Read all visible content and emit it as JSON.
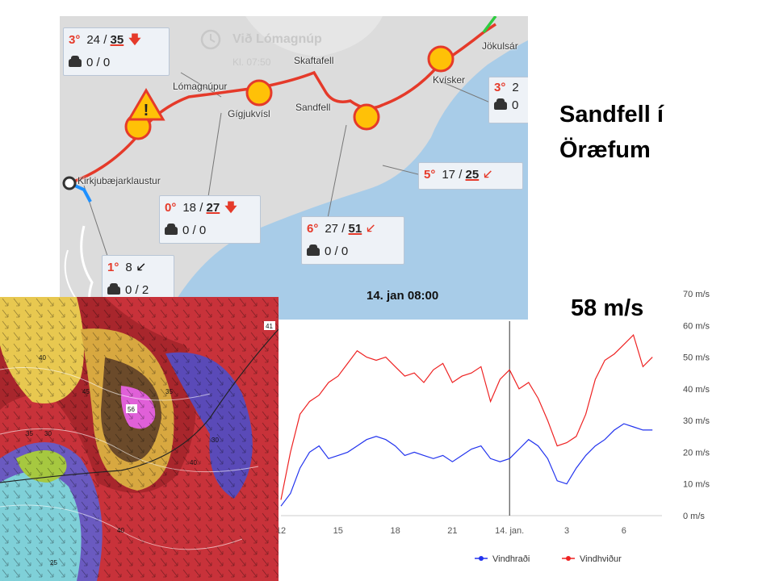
{
  "annotation": {
    "station_title": "Sandfell í Öræfum",
    "peak_label": "58 m/s"
  },
  "map": {
    "timestamp": "14. jan 08:00",
    "clock_label": "Við Lómagnúp",
    "clock_time": "Kl. 07:50",
    "places": [
      "Kirkjubæjarklaustur",
      "Lómagnúpur",
      "Gígjukvísl",
      "Skaftafell",
      "Sandfell",
      "Kvísker",
      "Jökulsár"
    ],
    "stations": [
      {
        "temp": "3°",
        "wind": "24",
        "gust": "35",
        "dir_icon": "arrow-down",
        "traffic": "0 / 0"
      },
      {
        "temp": "0°",
        "wind": "18",
        "gust": "27",
        "dir_icon": "arrow-down",
        "traffic": "0 / 0"
      },
      {
        "temp": "6°",
        "wind": "27",
        "gust": "51",
        "dir_icon": "arrow-down-left",
        "traffic": "0 / 0"
      },
      {
        "temp": "5°",
        "wind": "17",
        "gust": "25",
        "dir_icon": "arrow-down-left",
        "traffic": ""
      },
      {
        "temp": "3°",
        "wind": "2",
        "gust": "",
        "dir_icon": "",
        "traffic": "0"
      },
      {
        "temp": "1°",
        "wind": "8",
        "gust": "",
        "dir_icon": "arrow-down-left-black",
        "traffic": "0 / 2"
      }
    ],
    "colors": {
      "road_warning": "#e53a2a",
      "road_ok": "#2ecc40",
      "sea": "#a8cce8",
      "land": "#dcdcdc",
      "marker": "#ffc107"
    }
  },
  "model": {
    "contour_labels": [
      "41",
      "40",
      "45",
      "56",
      "35",
      "30",
      "35",
      "30",
      "40",
      "40",
      "25"
    ]
  },
  "chart_data": {
    "type": "line",
    "title": "",
    "xlabel": "",
    "ylabel": "",
    "ylim": [
      0,
      70
    ],
    "y_ticks": [
      "0 m/s",
      "10 m/s",
      "20 m/s",
      "30 m/s",
      "40 m/s",
      "50 m/s",
      "60 m/s",
      "70 m/s"
    ],
    "x_tick_labels": [
      "12",
      "15",
      "18",
      "21",
      "14. jan.",
      "3",
      "6"
    ],
    "x_tick_hours": [
      0,
      3,
      6,
      9,
      12,
      15,
      18
    ],
    "x_range_hours": [
      0,
      20
    ],
    "marker_hour": 12,
    "grid": false,
    "legend_position": "bottom-right",
    "series": [
      {
        "name": "Vindhraði",
        "color": "#2233ee",
        "x": [
          0,
          0.5,
          1,
          1.5,
          2,
          2.5,
          3,
          3.5,
          4,
          4.5,
          5,
          5.5,
          6,
          6.5,
          7,
          7.5,
          8,
          8.5,
          9,
          9.5,
          10,
          10.5,
          11,
          11.5,
          12,
          12.5,
          13,
          13.5,
          14,
          14.5,
          15,
          15.5,
          16,
          16.5,
          17,
          17.5,
          18,
          18.5,
          19,
          19.5
        ],
        "values": [
          3,
          7,
          15,
          20,
          22,
          18,
          19,
          20,
          22,
          24,
          25,
          24,
          22,
          19,
          20,
          19,
          18,
          19,
          17,
          19,
          21,
          22,
          18,
          17,
          18,
          21,
          24,
          22,
          18,
          11,
          10,
          15,
          19,
          22,
          24,
          27,
          29,
          28,
          27,
          27
        ]
      },
      {
        "name": "Vindhviður",
        "color": "#ee2222",
        "x": [
          0,
          0.5,
          1,
          1.5,
          2,
          2.5,
          3,
          3.5,
          4,
          4.5,
          5,
          5.5,
          6,
          6.5,
          7,
          7.5,
          8,
          8.5,
          9,
          9.5,
          10,
          10.5,
          11,
          11.5,
          12,
          12.5,
          13,
          13.5,
          14,
          14.5,
          15,
          15.5,
          16,
          16.5,
          17,
          17.5,
          18,
          18.5,
          19,
          19.5
        ],
        "values": [
          5,
          20,
          32,
          36,
          38,
          42,
          44,
          48,
          52,
          50,
          49,
          50,
          47,
          44,
          45,
          42,
          46,
          48,
          42,
          44,
          45,
          47,
          36,
          43,
          46,
          40,
          42,
          37,
          30,
          22,
          23,
          25,
          32,
          43,
          49,
          51,
          54,
          57,
          47,
          50
        ]
      }
    ]
  }
}
